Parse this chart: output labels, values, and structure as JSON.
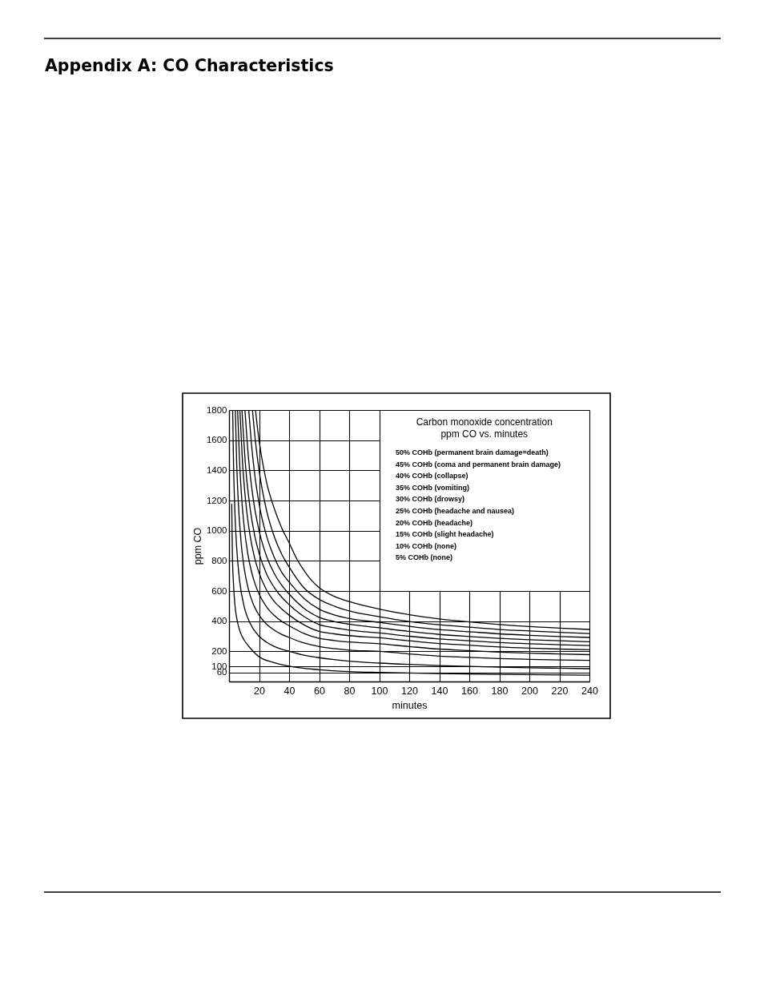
{
  "chart_data": {
    "type": "line",
    "title": "Appendix A: CO Characteristics",
    "subtitle": "Carbon monoxide concentration\nppm CO vs. minutes",
    "xlabel": "minutes",
    "ylabel": "ppm CO",
    "annotations": [
      "50% COHb (permanent brain damage=death)",
      "45% COHb (coma and permanent brain damage)",
      "40% COHb (collapse)",
      "35% COHb (vomiting)",
      "30% COHb (drowsy)",
      "25% COHb (headache and nausea)",
      "20% COHb (headache)",
      "15% COHb (slight headache)",
      "10% COHb (none)",
      "5% COHb (none)"
    ],
    "xlim": [
      0,
      240
    ],
    "ylim": [
      0,
      1800
    ],
    "xticks": [
      20,
      40,
      60,
      80,
      100,
      120,
      140,
      160,
      180,
      200,
      220,
      240
    ],
    "yticks": [
      60,
      100,
      200,
      400,
      600,
      800,
      1000,
      1200,
      1400,
      1600,
      1800
    ],
    "grid": true,
    "line_style": "solid",
    "series": [
      {
        "color": "#000000",
        "x": [
          17.6,
          19,
          21.5,
          25,
          30,
          35,
          40,
          45,
          50,
          55,
          60,
          70,
          80,
          100,
          120,
          140,
          160,
          180,
          200,
          220,
          240
        ],
        "values": [
          1800,
          1675,
          1500,
          1320,
          1150,
          1020,
          920,
          815,
          735,
          670,
          622,
          565,
          530,
          480,
          443,
          415,
          395,
          378,
          364,
          354,
          345
        ]
      },
      {
        "color": "#000000",
        "x": [
          15.6,
          17.5,
          20,
          25,
          30,
          35,
          40,
          50,
          60,
          70,
          80,
          100,
          120,
          140,
          160,
          180,
          200,
          220,
          240
        ],
        "values": [
          1800,
          1600,
          1400,
          1133,
          964,
          846,
          760,
          620,
          545,
          500,
          468,
          430,
          398,
          376,
          360,
          345,
          335,
          326,
          318
        ]
      },
      {
        "color": "#000000",
        "x": [
          13.1,
          15,
          17.5,
          20,
          25,
          30,
          35,
          40,
          50,
          60,
          70,
          80,
          100,
          120,
          140,
          160,
          180,
          200,
          220,
          240
        ],
        "values": [
          1800,
          1566,
          1341,
          1180,
          964,
          826,
          725,
          660,
          550,
          480,
          442,
          418,
          392,
          366,
          344,
          330,
          316,
          306,
          298,
          292
        ]
      },
      {
        "color": "#000000",
        "x": [
          10.6,
          13,
          16,
          20,
          25,
          30,
          35,
          40,
          50,
          60,
          70,
          80,
          100,
          120,
          140,
          160,
          180,
          200,
          220,
          240
        ],
        "values": [
          1800,
          1476,
          1218,
          1000,
          830,
          718,
          639,
          580,
          485,
          425,
          398,
          380,
          356,
          332,
          312,
          298,
          286,
          277,
          270,
          264
        ]
      },
      {
        "color": "#000000",
        "x": [
          8.6,
          11,
          14,
          17,
          20,
          25,
          30,
          35,
          40,
          50,
          60,
          70,
          80,
          100,
          120,
          140,
          160,
          180,
          200,
          220,
          240
        ],
        "values": [
          1800,
          1429,
          1150,
          972,
          850,
          713,
          625,
          560,
          510,
          430,
          378,
          356,
          341,
          322,
          300,
          282,
          270,
          258,
          250,
          244,
          238
        ]
      },
      {
        "color": "#000000",
        "x": [
          7.2,
          9,
          11,
          14,
          17,
          20,
          25,
          30,
          35,
          40,
          50,
          60,
          70,
          80,
          100,
          120,
          140,
          160,
          180,
          200,
          220,
          240
        ],
        "values": [
          1800,
          1449,
          1201,
          968,
          821,
          720,
          607,
          532,
          482,
          440,
          375,
          332,
          316,
          304,
          290,
          270,
          252,
          241,
          229,
          221,
          215,
          210
        ]
      },
      {
        "color": "#000000",
        "x": [
          5.7,
          7,
          8.5,
          10,
          12.5,
          15,
          17.5,
          20,
          25,
          30,
          35,
          40,
          50,
          60,
          70,
          80,
          100,
          120,
          140,
          160,
          180,
          200,
          220,
          240
        ],
        "values": [
          1800,
          1461,
          1204,
          1033,
          846,
          726,
          642,
          580,
          495,
          439,
          399,
          370,
          318,
          286,
          272,
          262,
          250,
          232,
          215,
          205,
          195,
          188,
          183,
          178
        ]
      },
      {
        "color": "#000000",
        "x": [
          4.2,
          5,
          6,
          8,
          10,
          13,
          16,
          20,
          25,
          30,
          35,
          40,
          50,
          60,
          70,
          80,
          100,
          120,
          140,
          160,
          180,
          200,
          220,
          240
        ],
        "values": [
          1800,
          1478,
          1222,
          924,
          756,
          607,
          516,
          440,
          380,
          341,
          313,
          292,
          255,
          232,
          218,
          208,
          200,
          183,
          168,
          160,
          152,
          147,
          143,
          140
        ]
      },
      {
        "color": "#000000",
        "x": [
          2.4,
          3,
          4,
          5,
          7,
          10,
          14,
          20,
          25,
          30,
          35,
          40,
          50,
          60,
          70,
          80,
          100,
          120,
          140,
          160,
          180,
          200,
          220,
          240
        ],
        "values": [
          1800,
          1433,
          1100,
          900,
          671,
          500,
          386,
          300,
          260,
          233,
          214,
          200,
          175,
          158,
          145,
          135,
          122,
          113,
          106,
          100,
          95,
          91,
          88,
          85
        ]
      },
      {
        "color": "#000000",
        "x": [
          1.8,
          2.2,
          3,
          4,
          5.5,
          7.6,
          10,
          13,
          20,
          29,
          40,
          60,
          80,
          100,
          140,
          180,
          240
        ],
        "values": [
          1175,
          860,
          640,
          501,
          400,
          324,
          275,
          235,
          164,
          128,
          101,
          78,
          66,
          60,
          52,
          47,
          42
        ]
      }
    ]
  }
}
